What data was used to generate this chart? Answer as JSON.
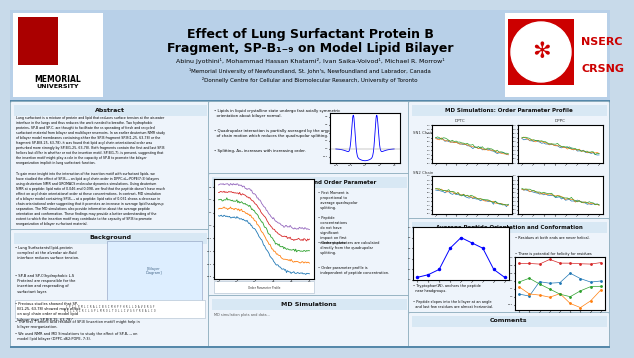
{
  "title_line1": "Effect of Lung Surfactant Protein B",
  "title_line2": "Fragment, SP-B₁₋₉ on Model Lipid Bilayer",
  "authors": "Abinu Jyothini¹, Mohammad Hassan Khatami², Ivan Saika-Voivod¹, Michael R. Morrow¹",
  "affil1": "¹Memorial University of Newfoundland, St. John's, Newfoundland and Labrador, Canada",
  "affil2": "²Donnelly Centre for Cellular and Biomolecular Research, University of Toronto",
  "header_bg": "#b8d0e8",
  "body_bg": "#c8daea",
  "section_bg": "#eef4fb",
  "section_title_bg": "#d8e8f4",
  "section_border": "#8aaabb",
  "abstract_title": "Abstract",
  "background_title": "Background",
  "nmr_title": "²H NMR First Moment and Order Parameter",
  "md_order_title": "MD Simulations: Order Parameter Profile",
  "avg_title": "Average Peptide Orientation and Conformation",
  "comments_title": "Comments",
  "md_sim_title": "MD Simulations",
  "nserc_red": "#cc0000",
  "mem_red": "#aa0000",
  "text_color": "#111111"
}
